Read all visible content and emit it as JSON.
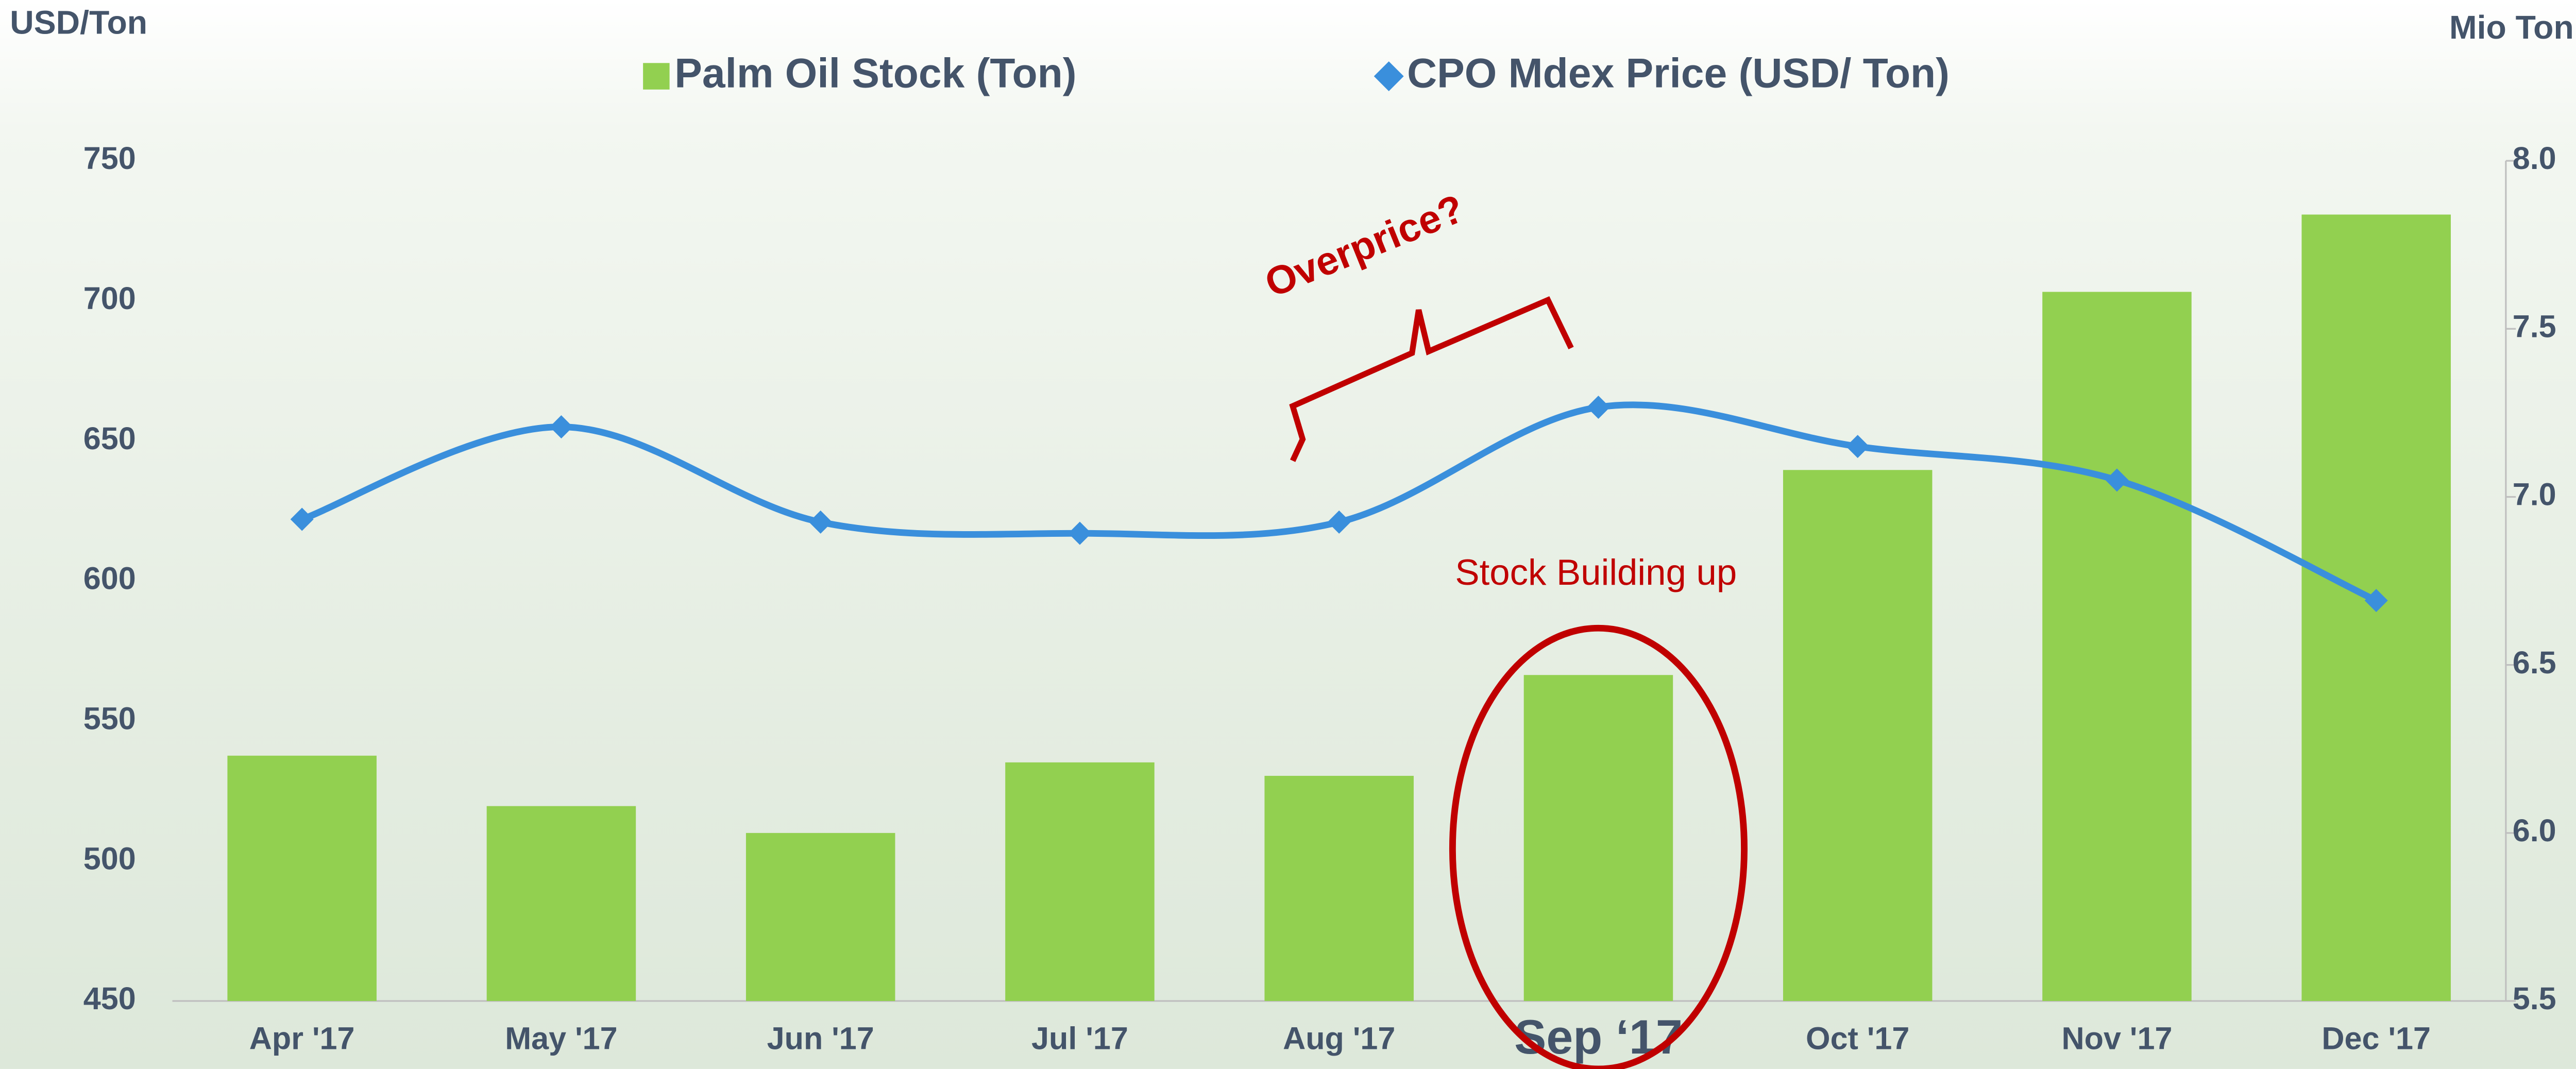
{
  "chart_data": {
    "type": "bar-line",
    "y_label": "USD/Ton",
    "y2_label": "Mio Ton",
    "categories": [
      "Apr '17",
      "May '17",
      "Jun '17",
      "Jul '17",
      "Aug '17",
      "Sep ‘17",
      "Oct '17",
      "Nov '17",
      "Dec '17"
    ],
    "series": [
      {
        "name": "Palm Oil Stock (Ton)",
        "color": "#92d050",
        "type": "bar",
        "axis": "y2",
        "values": [
          6.23,
          6.08,
          6.0,
          6.21,
          6.17,
          6.47,
          7.08,
          7.61,
          7.84
        ]
      },
      {
        "name": "CPO Mdex Price (USD/ Ton)",
        "color": "#3a8fdc",
        "type": "line",
        "axis": "y",
        "values": [
          622,
          655,
          621,
          617,
          621,
          662,
          648,
          636,
          593
        ]
      }
    ],
    "ylim": [
      450,
      750
    ],
    "yticks": [
      450,
      500,
      550,
      600,
      650,
      700,
      750
    ],
    "y2lim": [
      5.5,
      8.0
    ],
    "y2ticks": [
      {
        "value": 5.5,
        "label": "5.5"
      },
      {
        "value": 6.0,
        "label": "6.0"
      },
      {
        "value": 6.5,
        "label": "6.5"
      },
      {
        "value": 7.0,
        "label": "7.0"
      },
      {
        "value": 7.5,
        "label": "7.5"
      },
      {
        "value": 8.0,
        "label": "8.0"
      }
    ],
    "legend": "top",
    "annotations": [
      "Overprice?",
      "Stock Building up"
    ]
  }
}
